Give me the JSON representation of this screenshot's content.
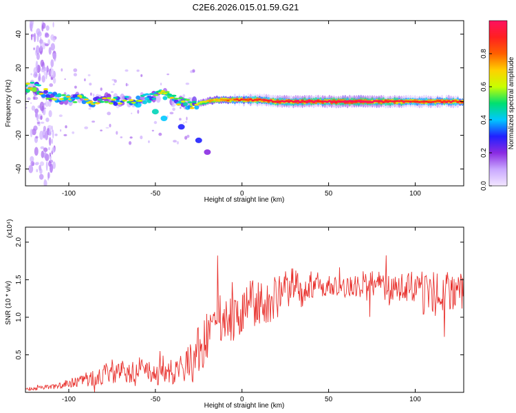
{
  "title": "C2E6.2026.015.01.59.G21",
  "chart_data": [
    {
      "type": "heatmap",
      "title": "C2E6.2026.015.01.59.G21",
      "xlabel": "Height of straight line (km)",
      "ylabel": "Frequency (Hz)",
      "xlim": [
        -125,
        128
      ],
      "ylim": [
        -50,
        48
      ],
      "x_ticks": [
        "-100",
        "-50",
        "0",
        "50",
        "100"
      ],
      "y_ticks": [
        "-40",
        "-20",
        "0",
        "20",
        "40"
      ],
      "colorbar": {
        "label": "Normalized spectral amplitude",
        "range": [
          0,
          1
        ],
        "ticks": [
          "0.0",
          "0.2",
          "0.4",
          "0.6",
          "0.8"
        ],
        "colors": [
          "#f2e6ff",
          "#c9a8ff",
          "#8a2be2",
          "#2020ff",
          "#00c8ff",
          "#00e070",
          "#c8ff00",
          "#ffd000",
          "#ff6000",
          "#ff2020",
          "#ff1060"
        ]
      },
      "ridge": [
        {
          "x": -125,
          "f": 8,
          "a": 0.55
        },
        {
          "x": -120,
          "f": 9,
          "a": 0.6
        },
        {
          "x": -115,
          "f": 6,
          "a": 0.45
        },
        {
          "x": -110,
          "f": 3,
          "a": 0.4
        },
        {
          "x": -105,
          "f": 2,
          "a": 0.45
        },
        {
          "x": -100,
          "f": 1,
          "a": 0.5
        },
        {
          "x": -95,
          "f": 2,
          "a": 0.45
        },
        {
          "x": -90,
          "f": 1,
          "a": 0.5
        },
        {
          "x": -85,
          "f": 0,
          "a": 0.45
        },
        {
          "x": -80,
          "f": 2,
          "a": 0.5
        },
        {
          "x": -75,
          "f": 1,
          "a": 0.45
        },
        {
          "x": -70,
          "f": 0,
          "a": 0.4
        },
        {
          "x": -65,
          "f": 1,
          "a": 0.45
        },
        {
          "x": -60,
          "f": 0,
          "a": 0.4
        },
        {
          "x": -55,
          "f": 2,
          "a": 0.45
        },
        {
          "x": -50,
          "f": 3,
          "a": 0.5
        },
        {
          "x": -45,
          "f": 4,
          "a": 0.5
        },
        {
          "x": -40,
          "f": 2,
          "a": 0.5
        },
        {
          "x": -35,
          "f": 0,
          "a": 0.5
        },
        {
          "x": -30,
          "f": -2,
          "a": 0.55
        },
        {
          "x": -25,
          "f": -1,
          "a": 0.6
        },
        {
          "x": -20,
          "f": 0,
          "a": 0.65
        },
        {
          "x": -15,
          "f": 1,
          "a": 0.7
        },
        {
          "x": -10,
          "f": 1,
          "a": 0.75
        },
        {
          "x": -5,
          "f": 1,
          "a": 0.75
        },
        {
          "x": 0,
          "f": 1,
          "a": 0.8
        },
        {
          "x": 5,
          "f": 1,
          "a": 0.85
        },
        {
          "x": 10,
          "f": 1,
          "a": 0.85
        },
        {
          "x": 20,
          "f": 0,
          "a": 0.9
        },
        {
          "x": 30,
          "f": 0,
          "a": 0.9
        },
        {
          "x": 40,
          "f": 0,
          "a": 0.9
        },
        {
          "x": 50,
          "f": 0,
          "a": 0.9
        },
        {
          "x": 60,
          "f": 0,
          "a": 0.95
        },
        {
          "x": 70,
          "f": 0,
          "a": 0.95
        },
        {
          "x": 80,
          "f": 0,
          "a": 0.9
        },
        {
          "x": 90,
          "f": 0,
          "a": 0.9
        },
        {
          "x": 100,
          "f": 0,
          "a": 0.85
        },
        {
          "x": 110,
          "f": 0,
          "a": 0.85
        },
        {
          "x": 120,
          "f": 0,
          "a": 0.85
        },
        {
          "x": 128,
          "f": 0,
          "a": 0.8
        }
      ],
      "branch": [
        {
          "x": -60,
          "f": -2,
          "a": 0.4
        },
        {
          "x": -50,
          "f": -6,
          "a": 0.45
        },
        {
          "x": -45,
          "f": -10,
          "a": 0.4
        },
        {
          "x": -35,
          "f": -15,
          "a": 0.3
        },
        {
          "x": -25,
          "f": -23,
          "a": 0.3
        },
        {
          "x": -20,
          "f": -30,
          "a": 0.2
        }
      ]
    },
    {
      "type": "line",
      "xlabel": "Height of straight line (km)",
      "ylabel": "SNR (10 * v/v)",
      "scale_label": "(x10⁴)",
      "xlim": [
        -125,
        128
      ],
      "ylim": [
        0,
        2.2
      ],
      "x_ticks": [
        "-100",
        "-50",
        "0",
        "50",
        "100"
      ],
      "y_ticks": [
        "0.5",
        "1.0",
        "1.5",
        "2.0"
      ],
      "color": "#e8302c",
      "x": [
        -125,
        -120,
        -115,
        -110,
        -105,
        -100,
        -95,
        -90,
        -85,
        -80,
        -75,
        -70,
        -65,
        -60,
        -55,
        -50,
        -45,
        -40,
        -35,
        -30,
        -25,
        -20,
        -15,
        -10,
        -5,
        0,
        5,
        10,
        15,
        20,
        25,
        30,
        35,
        40,
        45,
        50,
        55,
        60,
        65,
        70,
        75,
        80,
        85,
        90,
        95,
        100,
        105,
        110,
        115,
        120,
        125,
        128
      ],
      "base": [
        0.04,
        0.05,
        0.06,
        0.07,
        0.1,
        0.13,
        0.14,
        0.16,
        0.2,
        0.25,
        0.28,
        0.3,
        0.3,
        0.3,
        0.28,
        0.25,
        0.24,
        0.26,
        0.3,
        0.4,
        0.55,
        0.75,
        0.9,
        0.95,
        0.95,
        1.05,
        1.15,
        1.2,
        1.2,
        1.25,
        1.35,
        1.4,
        1.35,
        1.45,
        1.4,
        1.45,
        1.4,
        1.4,
        1.4,
        1.45,
        1.4,
        1.4,
        1.35,
        1.4,
        1.4,
        1.4,
        1.3,
        1.3,
        1.35,
        1.35,
        1.35,
        1.35
      ],
      "amp": [
        0.02,
        0.02,
        0.03,
        0.04,
        0.05,
        0.06,
        0.07,
        0.09,
        0.12,
        0.14,
        0.16,
        0.18,
        0.18,
        0.17,
        0.16,
        0.15,
        0.16,
        0.18,
        0.22,
        0.3,
        0.35,
        0.4,
        0.4,
        0.35,
        0.3,
        0.3,
        0.3,
        0.32,
        0.32,
        0.3,
        0.3,
        0.25,
        0.22,
        0.2,
        0.18,
        0.15,
        0.13,
        0.12,
        0.15,
        0.2,
        0.22,
        0.22,
        0.2,
        0.2,
        0.22,
        0.25,
        0.3,
        0.35,
        0.3,
        0.25,
        0.25,
        0.25
      ]
    }
  ]
}
